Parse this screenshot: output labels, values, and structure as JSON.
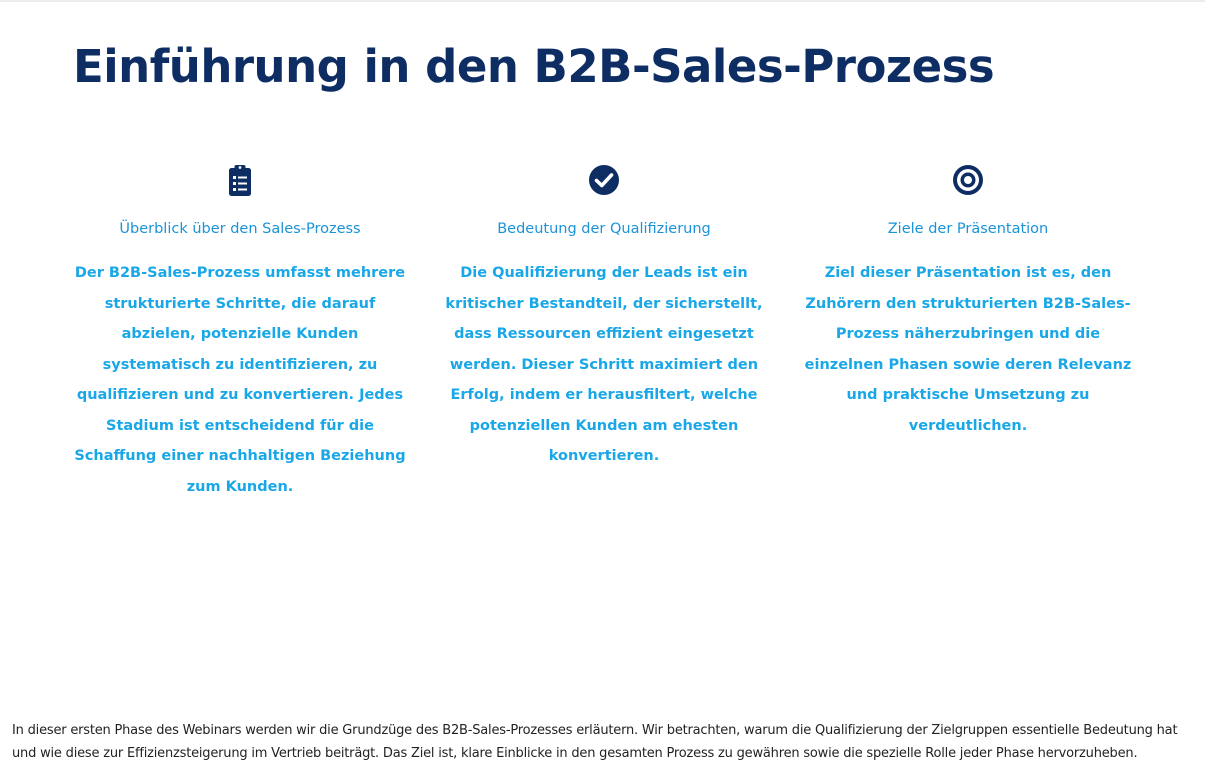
{
  "slide": {
    "title": "Einführung in den B2B-Sales-Prozess",
    "columns": [
      {
        "icon": "clipboard-list-icon",
        "heading": "Überblick über den Sales-Prozess",
        "body": "Der B2B-Sales-Prozess umfasst mehrere strukturierte Schritte, die darauf abzielen, potenzielle Kunden systematisch zu identifizieren, zu qualifizieren und zu konvertieren. Jedes Stadium ist entscheidend für die Schaffung einer nachhaltigen Beziehung zum Kunden."
      },
      {
        "icon": "check-circle-icon",
        "heading": "Bedeutung der Qualifizierung",
        "body": "Die Qualifizierung der Leads ist ein kritischer Bestandteil, der sicherstellt, dass Ressourcen effizient eingesetzt werden. Dieser Schritt maximiert den Erfolg, indem er herausfiltert, welche potenziellen Kunden am ehesten konvertieren."
      },
      {
        "icon": "target-icon",
        "heading": "Ziele der Präsentation",
        "body": "Ziel dieser Präsentation ist es, den Zuhörern den strukturierten B2B-Sales-Prozess näherzubringen und die einzelnen Phasen sowie deren Relevanz und praktische Umsetzung zu verdeutlichen."
      }
    ]
  },
  "caption": "In dieser ersten Phase des Webinars werden wir die Grundzüge des B2B-Sales-Prozesses erläutern. Wir betrachten, warum die Qualifizierung der Zielgruppen essentielle Bedeutung hat und wie diese zur Effizienzsteigerung im Vertrieb beiträgt. Das Ziel ist, klare Einblicke in den gesamten Prozess zu gewähren sowie die spezielle Rolle jeder Phase hervorzuheben.",
  "colors": {
    "title": "#0d2d63",
    "icon": "#0d2d63",
    "heading": "#1a93d9",
    "body": "#19a7e8",
    "caption": "#222222"
  }
}
